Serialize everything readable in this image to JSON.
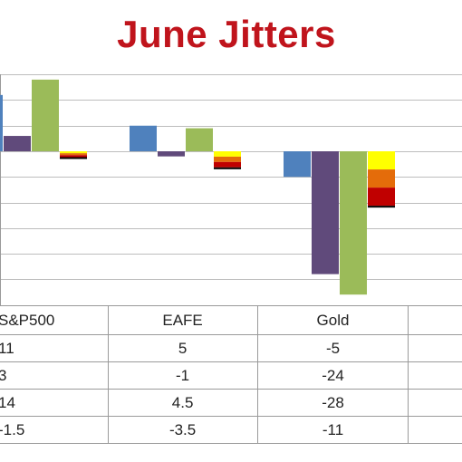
{
  "chart_data": {
    "type": "bar",
    "title": "June Jitters",
    "categories": [
      "S&P500",
      "EAFE",
      "Gold"
    ],
    "series": [
      {
        "values": [
          11,
          5,
          -5
        ],
        "labels": [
          "11",
          "5",
          "-5"
        ],
        "color": "#4f81bd"
      },
      {
        "values": [
          3,
          -1,
          -24
        ],
        "labels": [
          "3",
          "-1",
          "-24"
        ],
        "color": "#604a7b"
      },
      {
        "values": [
          14,
          4.5,
          -28
        ],
        "labels": [
          "14",
          "4.5",
          "-28"
        ],
        "color": "#9bbb59"
      },
      {
        "values": [
          -1.5,
          -3.5,
          -11
        ],
        "labels": [
          "-1.5",
          "-3.5",
          "-11"
        ],
        "stack_colors": [
          "#ffff00",
          "#e46c0a",
          "#c00000",
          "#000000"
        ]
      }
    ],
    "ylim": [
      -30,
      16
    ],
    "grid": true,
    "data_table": true
  }
}
